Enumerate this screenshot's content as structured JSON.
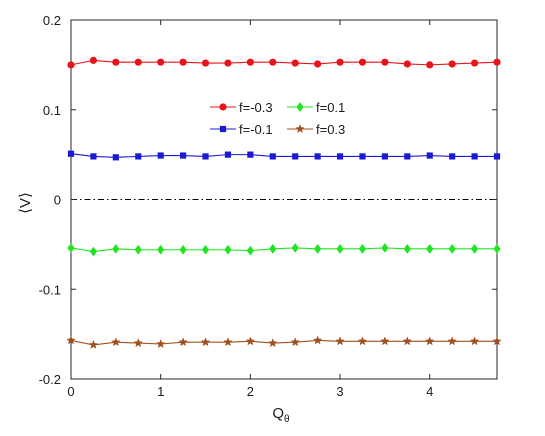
{
  "chart_data": {
    "type": "line",
    "xlabel": "Q",
    "xlabel_subscript": "θ",
    "ylabel": "⟨V⟩",
    "xlim": [
      0,
      4.75
    ],
    "ylim": [
      -0.2,
      0.2
    ],
    "xticks": [
      0,
      1,
      2,
      3,
      4
    ],
    "xtick_labels": [
      "0",
      "1",
      "2",
      "3",
      "4"
    ],
    "yticks": [
      -0.2,
      -0.1,
      0,
      0.1,
      0.2
    ],
    "ytick_labels": [
      "-0.2",
      "-0.1",
      "0",
      "0.1",
      "0.2"
    ],
    "grid": false,
    "legend_position": "upper-center",
    "zero_line": {
      "y": 0,
      "style": "dash-dot",
      "color": "#000000"
    },
    "x": [
      0,
      0.25,
      0.5,
      0.75,
      1.0,
      1.25,
      1.5,
      1.75,
      2.0,
      2.25,
      2.5,
      2.75,
      3.0,
      3.25,
      3.5,
      3.75,
      4.0,
      4.25,
      4.5,
      4.75
    ],
    "series": [
      {
        "name": "f=-0.3",
        "color": "#e8141b",
        "marker": "circle",
        "values": [
          0.15,
          0.155,
          0.153,
          0.153,
          0.153,
          0.153,
          0.152,
          0.152,
          0.153,
          0.153,
          0.152,
          0.151,
          0.153,
          0.153,
          0.153,
          0.151,
          0.15,
          0.151,
          0.152,
          0.153
        ]
      },
      {
        "name": "f=-0.1",
        "color": "#1b1bd6",
        "marker": "square",
        "values": [
          0.051,
          0.048,
          0.047,
          0.048,
          0.049,
          0.049,
          0.048,
          0.05,
          0.05,
          0.048,
          0.048,
          0.048,
          0.048,
          0.048,
          0.048,
          0.048,
          0.049,
          0.048,
          0.048,
          0.048
        ]
      },
      {
        "name": "f=0.1",
        "color": "#1ee61e",
        "marker": "diamond",
        "values": [
          -0.054,
          -0.058,
          -0.055,
          -0.056,
          -0.056,
          -0.056,
          -0.056,
          -0.056,
          -0.057,
          -0.055,
          -0.054,
          -0.055,
          -0.055,
          -0.055,
          -0.054,
          -0.055,
          -0.055,
          -0.055,
          -0.055,
          -0.055
        ]
      },
      {
        "name": "f=0.3",
        "color": "#a0501e",
        "marker": "star",
        "values": [
          -0.157,
          -0.162,
          -0.159,
          -0.16,
          -0.161,
          -0.159,
          -0.159,
          -0.159,
          -0.158,
          -0.16,
          -0.159,
          -0.157,
          -0.158,
          -0.158,
          -0.158,
          -0.158,
          -0.158,
          -0.158,
          -0.158,
          -0.158
        ]
      }
    ]
  }
}
